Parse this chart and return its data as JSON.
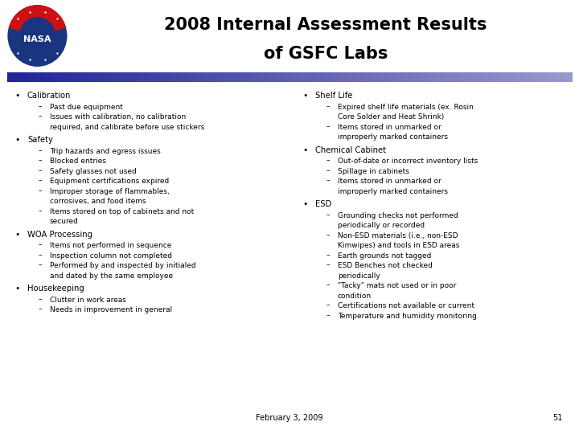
{
  "title_line1": "2008 Internal Assessment Results",
  "title_line2": "of GSFC Labs",
  "title_fontsize": 15,
  "bg_color": "#ffffff",
  "footer_date": "February 3, 2009",
  "footer_page": "51",
  "left_bullets": [
    {
      "main": "Calibration",
      "subs": [
        "Past due equipment",
        "Issues with calibration, no calibration\nrequired, and calibrate before use stickers"
      ]
    },
    {
      "main": "Safety",
      "subs": [
        "Trip hazards and egress issues",
        "Blocked entries",
        "Safety glasses not used",
        "Equipment certifications expired",
        "Improper storage of flammables,\ncorrosives, and food items",
        "Items stored on top of cabinets and not\nsecured"
      ]
    },
    {
      "main": "WOA Processing",
      "subs": [
        "Items not performed in sequence",
        "Inspection column not completed",
        "Performed by and inspected by initialed\nand dated by the same employee"
      ]
    },
    {
      "main": "Housekeeping",
      "subs": [
        "Clutter in work areas",
        "Needs in improvement in general"
      ]
    }
  ],
  "right_bullets": [
    {
      "main": "Shelf Life",
      "subs": [
        "Expired shelf life materials (ex. Rosin\nCore Solder and Heat Shrink)",
        "Items stored in unmarked or\nimproperly marked containers"
      ]
    },
    {
      "main": "Chemical Cabinet",
      "subs": [
        "Out-of-date or incorrect inventory lists",
        "Spillage in cabinets",
        "Items stored in unmarked or\nimproperly marked containers"
      ]
    },
    {
      "main": "ESD",
      "subs": [
        "Grounding checks not performed\nperiodically or recorded",
        "Non-ESD materials (i.e., non-ESD\nKimwipes) and tools in ESD areas",
        "Earth grounds not tagged",
        "ESD Benches not checked\nperiodically",
        "\"Tacky\" mats not used or in poor\ncondition",
        "Certifications not available or current",
        "Temperature and humidity monitoring"
      ]
    }
  ],
  "body_fontsize": 6.5,
  "main_fontsize": 7.2,
  "footer_fontsize": 7.0,
  "sans_font": "DejaVu Sans"
}
